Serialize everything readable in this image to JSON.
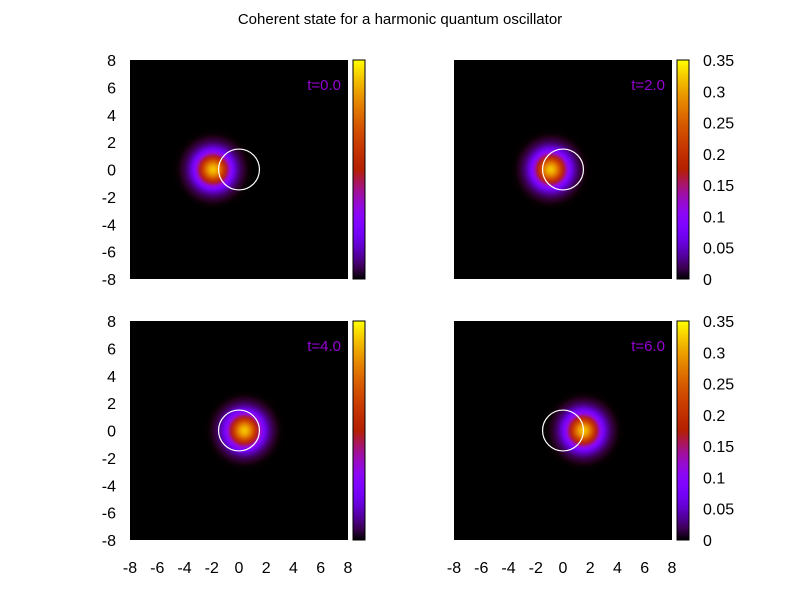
{
  "title": "Coherent state for a harmonic quantum oscillator",
  "chart_data": [
    {
      "type": "heatmap",
      "annotation": "t=0.0",
      "colormap": "gnuplot pm3d default (black-purple-red-yellow)",
      "xlim": [
        -8,
        8
      ],
      "ylim": [
        -8,
        8
      ],
      "x_ticks": [
        "-8",
        "-6",
        "-4",
        "-2",
        "0",
        "2",
        "4",
        "6",
        "8"
      ],
      "y_ticks": [
        "-8",
        "-6",
        "-4",
        "-2",
        "0",
        "2",
        "4",
        "6",
        "8"
      ],
      "show_x_ticks": false,
      "colorbar": {
        "range": [
          0,
          0.35
        ],
        "ticks": []
      },
      "density_peak": {
        "x": -1.9,
        "y": 0.0,
        "value": 0.32
      },
      "circle": {
        "center": [
          0,
          0
        ],
        "radius": 1.5,
        "color": "#ffffff"
      },
      "grid": false
    },
    {
      "type": "heatmap",
      "annotation": "t=2.0",
      "colormap": "gnuplot pm3d default (black-purple-red-yellow)",
      "xlim": [
        -8,
        8
      ],
      "ylim": [
        -8,
        8
      ],
      "x_ticks": [
        "-8",
        "-6",
        "-4",
        "-2",
        "0",
        "2",
        "4",
        "6",
        "8"
      ],
      "y_ticks": [],
      "show_x_ticks": false,
      "colorbar": {
        "range": [
          0,
          0.35
        ],
        "ticks": [
          "0",
          "0.05",
          "0.1",
          "0.15",
          "0.2",
          "0.25",
          "0.3",
          "0.35"
        ]
      },
      "density_peak": {
        "x": -0.9,
        "y": 0.0,
        "value": 0.32
      },
      "circle": {
        "center": [
          0,
          0
        ],
        "radius": 1.5,
        "color": "#ffffff"
      },
      "grid": false
    },
    {
      "type": "heatmap",
      "annotation": "t=4.0",
      "colormap": "gnuplot pm3d default (black-purple-red-yellow)",
      "xlim": [
        -8,
        8
      ],
      "ylim": [
        -8,
        8
      ],
      "x_ticks": [
        "-8",
        "-6",
        "-4",
        "-2",
        "0",
        "2",
        "4",
        "6",
        "8"
      ],
      "y_ticks": [
        "-8",
        "-6",
        "-4",
        "-2",
        "0",
        "2",
        "4",
        "6",
        "8"
      ],
      "show_x_ticks": true,
      "colorbar": {
        "range": [
          0,
          0.35
        ],
        "ticks": []
      },
      "density_peak": {
        "x": 0.4,
        "y": 0.0,
        "value": 0.32
      },
      "circle": {
        "center": [
          0,
          0
        ],
        "radius": 1.5,
        "color": "#ffffff"
      },
      "grid": false
    },
    {
      "type": "heatmap",
      "annotation": "t=6.0",
      "colormap": "gnuplot pm3d default (black-purple-red-yellow)",
      "xlim": [
        -8,
        8
      ],
      "ylim": [
        -8,
        8
      ],
      "x_ticks": [
        "-8",
        "-6",
        "-4",
        "-2",
        "0",
        "2",
        "4",
        "6",
        "8"
      ],
      "y_ticks": [],
      "show_x_ticks": true,
      "colorbar": {
        "range": [
          0,
          0.35
        ],
        "ticks": [
          "0",
          "0.05",
          "0.1",
          "0.15",
          "0.2",
          "0.25",
          "0.3",
          "0.35"
        ]
      },
      "density_peak": {
        "x": 1.5,
        "y": 0.0,
        "value": 0.32
      },
      "circle": {
        "center": [
          0,
          0
        ],
        "radius": 1.5,
        "color": "#ffffff"
      },
      "grid": false
    }
  ],
  "colors": {
    "annotation": "#9400d3",
    "background": "#000000",
    "circle": "#ffffff"
  }
}
